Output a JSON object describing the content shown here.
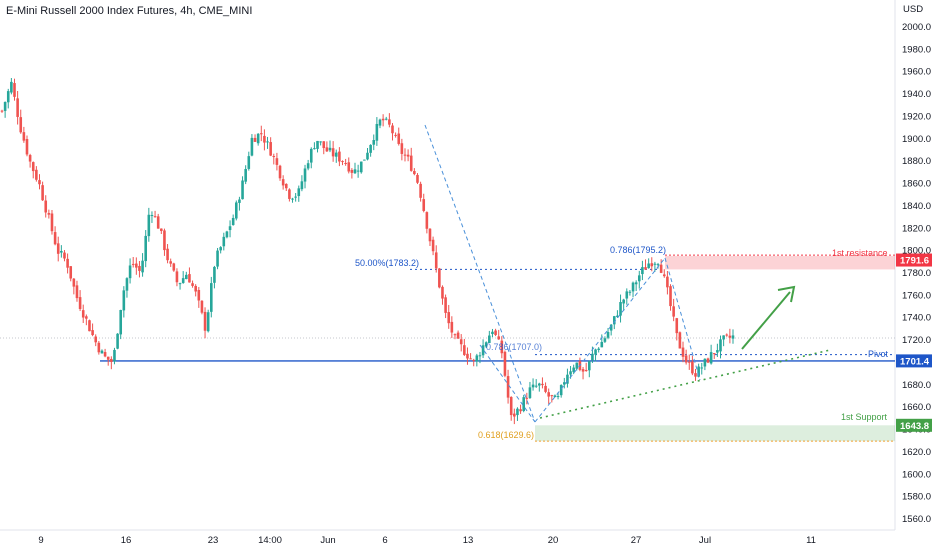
{
  "chart_data": {
    "type": "candlestick",
    "title": "E-Mini Russell 2000 Index Futures, 4h, CME_MINI",
    "currency": "USD",
    "ylim": [
      1550,
      2020
    ],
    "y_ticks": [
      2000.0,
      1980.0,
      1960.0,
      1940.0,
      1920.0,
      1900.0,
      1880.0,
      1860.0,
      1840.0,
      1820.0,
      1800.0,
      1780.0,
      1760.0,
      1740.0,
      1720.0,
      1700.0,
      1680.0,
      1660.0,
      1640.0,
      1620.0,
      1600.0,
      1580.0,
      1560.0
    ],
    "x_labels": [
      "9",
      "16",
      "23",
      "14:00",
      "Jun",
      "6",
      "13",
      "20",
      "27",
      "Jul",
      "11"
    ],
    "up_color": "#26a69a",
    "down_color": "#ef5350",
    "price_path": [
      1925,
      1950,
      1910,
      1880,
      1860,
      1830,
      1800,
      1790,
      1760,
      1740,
      1720,
      1705,
      1700,
      1760,
      1790,
      1780,
      1840,
      1820,
      1790,
      1770,
      1780,
      1760,
      1730,
      1790,
      1810,
      1830,
      1860,
      1900,
      1905,
      1890,
      1870,
      1850,
      1850,
      1880,
      1900,
      1890,
      1885,
      1880,
      1870,
      1880,
      1900,
      1918,
      1910,
      1890,
      1880,
      1860,
      1820,
      1780,
      1740,
      1720,
      1710,
      1700,
      1715,
      1730,
      1710,
      1650,
      1660,
      1675,
      1680,
      1670,
      1665,
      1690,
      1700,
      1690,
      1710,
      1720,
      1735,
      1755,
      1765,
      1780,
      1790,
      1792,
      1760,
      1720,
      1700,
      1690,
      1700,
      1710,
      1720,
      1723
    ],
    "annotations": {
      "resistance": {
        "label": "1st resistance",
        "value": 1791.6,
        "zone": [
          1783.2,
          1795.2
        ],
        "color": "#f23645"
      },
      "pivot": {
        "label": "Pivot",
        "value": 1701.4,
        "color": "#1e56c8"
      },
      "support": {
        "label": "1st Support",
        "value": 1643.8,
        "zone": [
          1629.6,
          1643.8
        ],
        "color": "#43a047"
      },
      "fib_786": "0.786(1795.2)",
      "fib_50": "50.00%(1783.2)",
      "fib_786b": "0.786(1707.0)",
      "fib_618": "0.618(1629.6)",
      "price_tags": [
        "1791.6",
        "1701.4",
        "1643.8"
      ]
    }
  }
}
